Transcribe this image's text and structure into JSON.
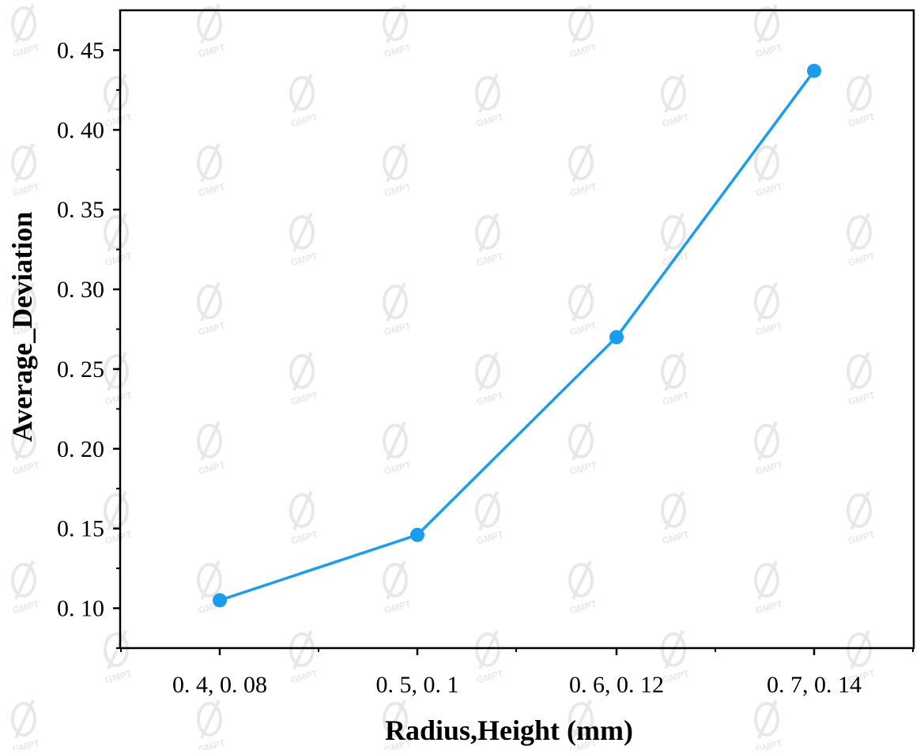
{
  "chart_data": {
    "type": "line",
    "xlabel": "Radius,Height (mm)",
    "ylabel": "Average_Deviation",
    "categories": [
      "0. 4, 0. 08",
      "0. 5, 0. 1",
      "0. 6, 0. 12",
      "0. 7, 0. 14"
    ],
    "series": [
      {
        "values": [
          0.105,
          0.146,
          0.27,
          0.437
        ]
      }
    ],
    "ylim": [
      0.075,
      0.475
    ],
    "yticks": [
      0.1,
      0.15,
      0.2,
      0.25,
      0.3,
      0.35,
      0.4,
      0.45
    ],
    "ytick_labels": [
      "0. 10",
      "0. 15",
      "0. 20",
      "0. 25",
      "0. 30",
      "0. 35",
      "0. 40",
      "0. 45"
    ],
    "grid": false,
    "line_color": "#1a9cf0",
    "marker": "circle"
  },
  "watermark": {
    "text": "GMPT",
    "color": "#e8e8e8"
  }
}
